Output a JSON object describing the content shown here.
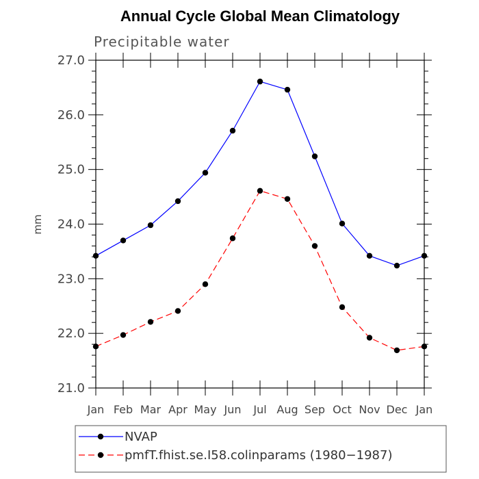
{
  "chart_data": {
    "type": "line",
    "title": "Annual Cycle Global Mean Climatology",
    "subtitle": "Precipitable water",
    "xlabel": "",
    "ylabel": "mm",
    "categories": [
      "Jan",
      "Feb",
      "Mar",
      "Apr",
      "May",
      "Jun",
      "Jul",
      "Aug",
      "Sep",
      "Oct",
      "Nov",
      "Dec",
      "Jan"
    ],
    "ylim": [
      21.0,
      27.0
    ],
    "yticks": [
      "21.0",
      "22.0",
      "23.0",
      "24.0",
      "25.0",
      "26.0",
      "27.0"
    ],
    "grid": false,
    "legend_placement": "bottom",
    "series": [
      {
        "name": "NVAP",
        "color": "#0000ff",
        "dashed": false,
        "values": [
          23.42,
          23.7,
          23.98,
          24.42,
          24.94,
          25.71,
          26.61,
          26.46,
          25.24,
          24.01,
          23.42,
          23.24,
          23.42
        ]
      },
      {
        "name": "pmfT.fhist.se.I58.colinparams (1980−1987)",
        "color": "#ff0000",
        "dashed": true,
        "values": [
          21.76,
          21.97,
          22.21,
          22.41,
          22.9,
          23.74,
          24.61,
          24.46,
          23.6,
          22.48,
          21.92,
          21.69,
          21.76
        ]
      }
    ]
  }
}
